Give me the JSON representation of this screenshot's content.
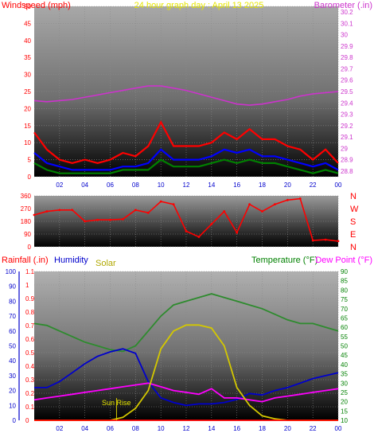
{
  "colors": {
    "windspeed": "#ff0000",
    "gust_blue": "#0000ff",
    "avg_green": "#008000",
    "barometer": "#cc33cc",
    "direction": "#ff0000",
    "humidity": "#0000cc",
    "solar": "#d4c800",
    "temperature": "#2e8b2e",
    "dewpoint": "#ff00ff",
    "rain": "#ff0000"
  },
  "chart_data": [
    {
      "type": "line",
      "id": "wind",
      "title": "24 hour graph day : April 13 2025",
      "ylabel": "Windspeed (mph)",
      "y2label": "Barometer (.in)",
      "x_ticks": [
        "02",
        "04",
        "06",
        "08",
        "10",
        "12",
        "14",
        "16",
        "18",
        "20",
        "22",
        "00"
      ],
      "y_ticks": [
        "0",
        "5",
        "10",
        "15",
        "20",
        "25",
        "30",
        "35",
        "40",
        "45",
        "50"
      ],
      "y2_ticks": [
        "28.8",
        "28.9",
        "29",
        "29.1",
        "29.2",
        "29.3",
        "29.4",
        "29.5",
        "29.6",
        "29.7",
        "29.8",
        "29.9",
        "30",
        "30.1",
        "30.2"
      ],
      "ylim": [
        0,
        50
      ],
      "y2lim": [
        28.75,
        30.25
      ],
      "hours": [
        0,
        1,
        2,
        3,
        4,
        5,
        6,
        7,
        8,
        9,
        10,
        11,
        12,
        13,
        14,
        15,
        16,
        17,
        18,
        19,
        20,
        21,
        22,
        23,
        24
      ],
      "series": [
        {
          "key": "gust",
          "values": [
            13,
            8,
            5,
            4,
            5,
            4,
            5,
            7,
            6,
            9,
            16,
            9,
            9,
            9,
            10,
            13,
            11,
            14,
            11,
            11,
            9,
            8,
            5,
            8,
            4
          ]
        },
        {
          "key": "avg",
          "values": [
            7,
            4,
            3,
            2,
            2,
            2,
            2,
            3,
            3,
            4,
            8,
            5,
            5,
            5,
            6,
            8,
            7,
            8,
            6,
            6,
            5,
            4,
            3,
            4,
            2
          ]
        },
        {
          "key": "low",
          "values": [
            4,
            2,
            1,
            1,
            1,
            1,
            1,
            2,
            2,
            2,
            5,
            3,
            3,
            3,
            4,
            5,
            4,
            5,
            4,
            4,
            3,
            2,
            1,
            2,
            1
          ]
        },
        {
          "key": "barometer",
          "values": [
            29.42,
            29.41,
            29.42,
            29.43,
            29.45,
            29.47,
            29.49,
            29.51,
            29.53,
            29.55,
            29.55,
            29.53,
            29.51,
            29.48,
            29.45,
            29.42,
            29.39,
            29.38,
            29.39,
            29.41,
            29.43,
            29.46,
            29.48,
            29.49,
            29.5
          ]
        }
      ]
    },
    {
      "type": "scatter",
      "id": "direction",
      "y_ticks": [
        "0",
        "90",
        "180",
        "270",
        "360"
      ],
      "y2_labels": [
        "N",
        "W",
        "S",
        "E",
        "N"
      ],
      "ylim": [
        0,
        360
      ],
      "hours": [
        0,
        1,
        2,
        3,
        4,
        5,
        6,
        7,
        8,
        9,
        10,
        11,
        12,
        13,
        14,
        15,
        16,
        17,
        18,
        19,
        20,
        21,
        22,
        23,
        24
      ],
      "values": [
        225,
        250,
        260,
        260,
        180,
        190,
        190,
        195,
        260,
        240,
        320,
        300,
        110,
        70,
        160,
        250,
        100,
        300,
        250,
        300,
        330,
        340,
        45,
        50,
        40
      ]
    },
    {
      "type": "line",
      "id": "temp",
      "ylabel": "Rainfall (.in)",
      "ylabel2": "Humidity",
      "ylabel3": "Solar",
      "y2label": "Temperature (°F)",
      "y2label2": "Dew Point (°F)",
      "annotation": "Sun Rise",
      "x_ticks": [
        "02",
        "04",
        "06",
        "08",
        "10",
        "12",
        "14",
        "16",
        "18",
        "20",
        "22",
        "00"
      ],
      "humidity_ticks": [
        "0",
        "10",
        "20",
        "30",
        "40",
        "50",
        "60",
        "70",
        "80",
        "90",
        "100"
      ],
      "rain_ticks": [
        "0",
        "0.1",
        "0.2",
        "0.3",
        "0.4",
        "0.5",
        "0.6",
        "0.7",
        "0.8",
        "0.9",
        "1",
        "1.1"
      ],
      "temp_ticks": [
        "10",
        "15",
        "20",
        "25",
        "30",
        "35",
        "40",
        "45",
        "50",
        "55",
        "60",
        "65",
        "70",
        "75",
        "80",
        "85",
        "90"
      ],
      "humidity_lim": [
        0,
        100
      ],
      "rain_lim": [
        0,
        1.1
      ],
      "temp_lim": [
        10,
        90
      ],
      "hours": [
        0,
        1,
        2,
        3,
        4,
        5,
        6,
        7,
        8,
        9,
        10,
        11,
        12,
        13,
        14,
        15,
        16,
        17,
        18,
        19,
        20,
        21,
        22,
        23,
        24
      ],
      "series": [
        {
          "key": "temperature",
          "values": [
            62,
            61,
            58,
            55,
            52,
            50,
            48,
            47,
            50,
            58,
            66,
            72,
            74,
            76,
            78,
            76,
            74,
            72,
            70,
            67,
            64,
            62,
            62,
            60,
            58
          ]
        },
        {
          "key": "humidity",
          "values": [
            22,
            22,
            26,
            32,
            38,
            43,
            46,
            48,
            45,
            26,
            15,
            12,
            10,
            11,
            11,
            12,
            14,
            18,
            17,
            20,
            22,
            25,
            28,
            30,
            32
          ]
        },
        {
          "key": "dewpoint",
          "values": [
            21,
            22,
            23,
            24,
            25,
            26,
            27,
            28,
            29,
            30,
            28,
            26,
            25,
            24,
            27,
            22,
            22,
            21,
            20,
            22,
            23,
            24,
            25,
            26,
            27
          ]
        },
        {
          "key": "solar",
          "values": [
            0,
            0,
            0,
            0,
            0,
            0,
            0,
            2,
            8,
            20,
            48,
            60,
            64,
            64,
            62,
            50,
            22,
            10,
            3,
            1,
            0,
            0,
            0,
            0,
            0
          ]
        },
        {
          "key": "rain",
          "values": [
            0,
            0,
            0,
            0,
            0,
            0,
            0,
            0,
            0,
            0,
            0,
            0,
            0,
            0,
            0,
            0,
            0,
            0,
            0,
            0,
            0,
            0,
            0,
            0,
            0
          ]
        }
      ]
    }
  ]
}
